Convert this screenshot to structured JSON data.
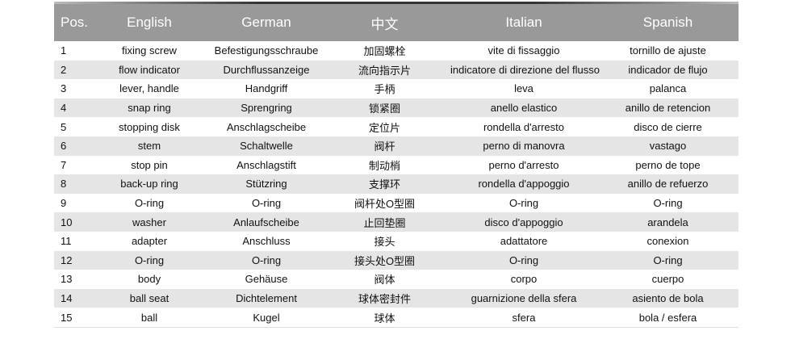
{
  "headers": [
    "Pos.",
    "English",
    "German",
    "中文",
    "Italian",
    "Spanish"
  ],
  "rows": [
    [
      "1",
      "fixing screw",
      "Befestigungsschraube",
      "加固螺栓",
      "vite di fissaggio",
      "tornillo de ajuste"
    ],
    [
      "2",
      "flow indicator",
      "Durchflussanzeige",
      "流向指示片",
      "indicatore di direzione del flusso",
      "indicador de flujo"
    ],
    [
      "3",
      "lever, handle",
      "Handgriff",
      "手柄",
      "leva",
      "palanca"
    ],
    [
      "4",
      "snap ring",
      "Sprengring",
      "锁紧圈",
      "anello elastico",
      "anillo de retencion"
    ],
    [
      "5",
      "stopping disk",
      "Anschlagscheibe",
      "定位片",
      "rondella d'arresto",
      "disco de cierre"
    ],
    [
      "6",
      "stem",
      "Schaltwelle",
      "阀杆",
      "perno di manovra",
      "vastago"
    ],
    [
      "7",
      "stop pin",
      "Anschlagstift",
      "制动梢",
      "perno d'arresto",
      "perno de tope"
    ],
    [
      "8",
      "back-up ring",
      "Stützring",
      "支撑环",
      "rondella d'appoggio",
      "anillo de refuerzo"
    ],
    [
      "9",
      "O-ring",
      "O-ring",
      "阀杆处O型圈",
      "O-ring",
      "O-ring"
    ],
    [
      "10",
      "washer",
      "Anlaufscheibe",
      "止回垫圈",
      "disco d'appoggio",
      "arandela"
    ],
    [
      "11",
      "adapter",
      "Anschluss",
      "接头",
      "adattatore",
      "conexion"
    ],
    [
      "12",
      "O-ring",
      "O-ring",
      "接头处O型圈",
      "O-ring",
      "O-ring"
    ],
    [
      "13",
      "body",
      "Gehäuse",
      "阀体",
      "corpo",
      "cuerpo"
    ],
    [
      "14",
      "ball seat",
      "Dichtelement",
      "球体密封件",
      "guarnizione della sfera",
      "asiento de bola"
    ],
    [
      "15",
      "ball",
      "Kugel",
      "球体",
      "sfera",
      "bola / esfera"
    ]
  ]
}
